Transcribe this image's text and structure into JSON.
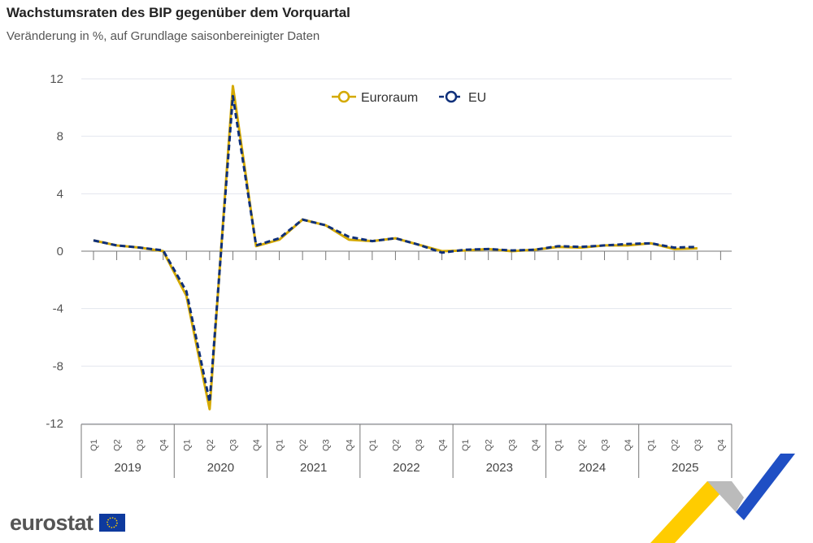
{
  "chart_data": {
    "type": "line",
    "title": "Wachstumsraten des BIP gegenüber dem Vorquartal",
    "subtitle": "Veränderung in %, auf Grundlage saisonbereinigter Daten",
    "ylim": [
      -12,
      12
    ],
    "yticks": [
      12,
      8,
      4,
      0,
      -4,
      -8,
      -12
    ],
    "years": [
      "2019",
      "2020",
      "2021",
      "2022",
      "2023",
      "2024",
      "2025"
    ],
    "quarters": [
      "Q1",
      "Q2",
      "Q3",
      "Q4"
    ],
    "legend_position": "top-center",
    "series": [
      {
        "name": "Euroraum",
        "color": "#d4a900",
        "dashed": false,
        "values": [
          0.75,
          0.4,
          0.25,
          0.0,
          -3.1,
          -11.0,
          11.5,
          0.35,
          0.8,
          2.2,
          1.8,
          0.8,
          0.7,
          0.9,
          0.45,
          0.0,
          0.05,
          0.15,
          0.0,
          0.1,
          0.3,
          0.25,
          0.4,
          0.4,
          0.55,
          0.15,
          0.2
        ]
      },
      {
        "name": "EU",
        "color": "#0e2f7a",
        "dashed": true,
        "values": [
          0.75,
          0.4,
          0.25,
          0.05,
          -2.8,
          -10.5,
          10.8,
          0.4,
          0.9,
          2.2,
          1.8,
          1.0,
          0.7,
          0.9,
          0.45,
          -0.1,
          0.1,
          0.15,
          0.05,
          0.1,
          0.35,
          0.3,
          0.4,
          0.5,
          0.55,
          0.25,
          0.3
        ]
      }
    ]
  },
  "branding": {
    "logo": "eurostat"
  }
}
